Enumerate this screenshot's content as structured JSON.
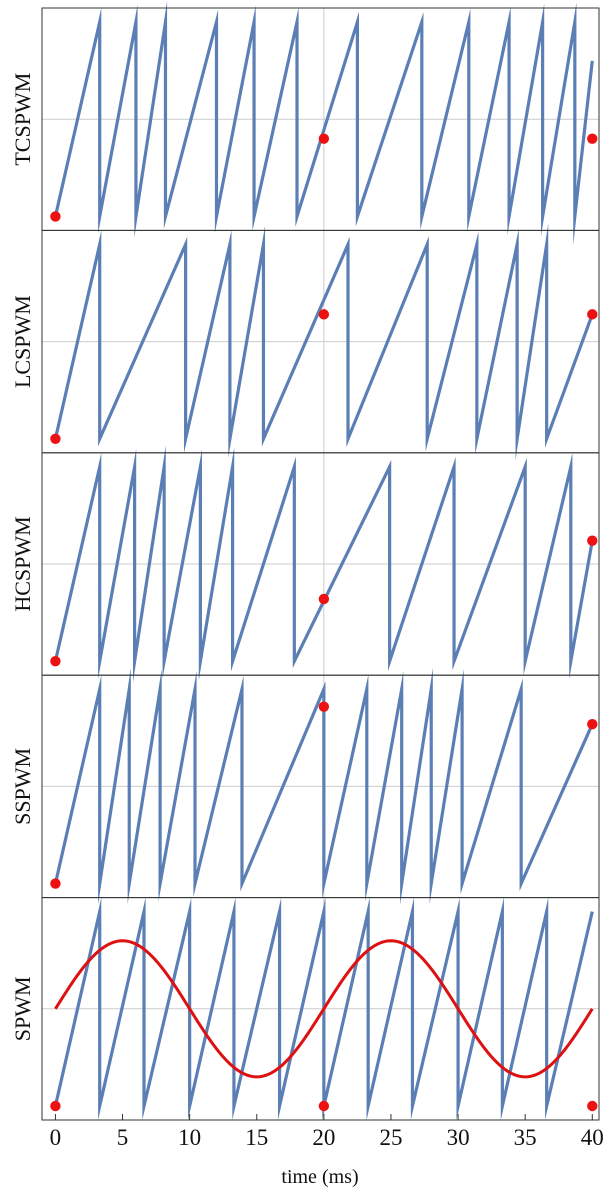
{
  "chart_data": {
    "type": "line",
    "xlabel": "time (ms)",
    "xlim": [
      -1,
      40.5
    ],
    "ylim": [
      0,
      1
    ],
    "xticks": [
      0,
      5,
      10,
      15,
      20,
      25,
      30,
      35,
      40
    ],
    "grid": true,
    "colors": {
      "carrier": "#5b7fb5",
      "marker": "#ee1111",
      "sine": "#dd1111",
      "grid": "#cccccc",
      "frame": "#333333"
    },
    "panels": [
      {
        "label": "TCSPWM",
        "carrier_resets": [
          3.3,
          6.0,
          8.2,
          12.0,
          14.8,
          18.0,
          22.5,
          27.3,
          30.8,
          33.8,
          36.3,
          38.7
        ],
        "carrier_end_level": 0.8,
        "markers": [
          [
            0,
            0
          ],
          [
            20,
            0.4
          ],
          [
            40,
            0.4
          ]
        ]
      },
      {
        "label": "LCSPWM",
        "carrier_resets": [
          3.3,
          9.7,
          13.0,
          15.5,
          21.8,
          27.7,
          31.4,
          34.4,
          36.6
        ],
        "carrier_end_level": 0.64,
        "markers": [
          [
            0,
            0
          ],
          [
            20,
            0.64
          ],
          [
            40,
            0.64
          ]
        ]
      },
      {
        "label": "HCSPWM",
        "carrier_resets": [
          3.3,
          5.9,
          8.1,
          10.8,
          13.2,
          17.8,
          24.9,
          29.7,
          35.0,
          38.4
        ],
        "carrier_end_level": 0.62,
        "markers": [
          [
            0,
            0
          ],
          [
            20,
            0.32
          ],
          [
            40,
            0.62
          ]
        ]
      },
      {
        "label": "SSPWM",
        "carrier_resets": [
          3.3,
          5.5,
          7.8,
          10.4,
          13.9,
          20.0,
          23.2,
          25.8,
          28.0,
          30.3,
          34.7
        ],
        "carrier_end_level": 0.82,
        "markers": [
          [
            0,
            0
          ],
          [
            20,
            0.91
          ],
          [
            40,
            0.82
          ]
        ]
      },
      {
        "label": "SPWM",
        "carrier_resets": [
          3.3,
          6.6,
          10.0,
          13.3,
          16.7,
          20.0,
          23.3,
          26.6,
          30.0,
          33.3,
          36.6
        ],
        "carrier_end_level": 1.0,
        "markers": [
          [
            0,
            0
          ],
          [
            20,
            0
          ],
          [
            40,
            0
          ]
        ],
        "sine": {
          "period_ms": 20,
          "mean": 0.5,
          "amplitude": 0.35
        }
      }
    ]
  }
}
